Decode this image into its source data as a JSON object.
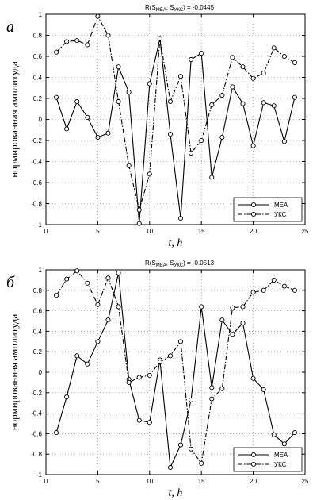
{
  "chart_data": [
    {
      "type": "line",
      "panel_label": "а",
      "title": "R(S",
      "title_sub1": "MEA",
      "title_mid": ", S",
      "title_sub2": "УКС",
      "title_tail": ") = -0.0445",
      "xlabel": "t, h",
      "ylabel": "нормированная амплитуда",
      "xlim": [
        0,
        25
      ],
      "ylim": [
        -1,
        1
      ],
      "xticks": [
        "0",
        "5",
        "10",
        "15",
        "20",
        "25"
      ],
      "yticks": [
        "-1",
        "-0.8",
        "-0.6",
        "-0.4",
        "-0.2",
        "0",
        "0.2",
        "0.4",
        "0.6",
        "0.8",
        "1"
      ],
      "grid": "dotted",
      "legend_position": "bottom-right",
      "x": [
        1,
        2,
        3,
        4,
        5,
        6,
        7,
        8,
        9,
        10,
        11,
        12,
        13,
        14,
        15,
        16,
        17,
        18,
        19,
        20,
        21,
        22,
        23,
        24
      ],
      "series": [
        {
          "name": "МЕА",
          "style": "solid",
          "values": [
            0.21,
            -0.09,
            0.17,
            0.02,
            -0.17,
            -0.13,
            0.5,
            0.26,
            -0.99,
            0.34,
            0.77,
            -0.14,
            -0.94,
            0.57,
            0.63,
            -0.55,
            -0.17,
            0.31,
            0.15,
            -0.25,
            0.16,
            0.13,
            -0.21,
            0.21
          ]
        },
        {
          "name": "УКС",
          "style": "dashdot",
          "values": [
            0.64,
            0.74,
            0.75,
            0.71,
            0.98,
            0.8,
            0.17,
            -0.44,
            -0.86,
            -0.52,
            0.77,
            0.17,
            0.41,
            -0.32,
            -0.2,
            0.14,
            0.23,
            0.59,
            0.5,
            0.39,
            0.44,
            0.68,
            0.6,
            0.54
          ]
        }
      ]
    },
    {
      "type": "line",
      "panel_label": "б",
      "title": "R(S",
      "title_sub1": "MEA",
      "title_mid": ", S",
      "title_sub2": "УКС",
      "title_tail": ") = -0.0513",
      "xlabel": "t, h",
      "ylabel": "нормированная амплитуда",
      "xlim": [
        0,
        25
      ],
      "ylim": [
        -1,
        1
      ],
      "xticks": [
        "0",
        "5",
        "10",
        "15",
        "20",
        "25"
      ],
      "yticks": [
        "-1",
        "-0.8",
        "-0.6",
        "-0.4",
        "-0.2",
        "0",
        "0.2",
        "0.4",
        "0.6",
        "0.8",
        "1"
      ],
      "grid": "dotted",
      "legend_position": "bottom-right",
      "x": [
        1,
        2,
        3,
        4,
        5,
        6,
        7,
        8,
        9,
        10,
        11,
        12,
        13,
        14,
        15,
        16,
        17,
        18,
        19,
        20,
        21,
        22,
        23,
        24
      ],
      "series": [
        {
          "name": "МЕА",
          "style": "solid",
          "values": [
            -0.59,
            -0.24,
            0.16,
            0.08,
            0.3,
            0.51,
            0.97,
            -0.07,
            -0.47,
            -0.49,
            0.12,
            -0.93,
            -0.71,
            -0.27,
            0.64,
            -0.15,
            0.51,
            0.37,
            0.48,
            -0.06,
            -0.17,
            -0.61,
            -0.7,
            -0.59
          ]
        },
        {
          "name": "УКС",
          "style": "dashdot",
          "values": [
            0.75,
            0.91,
            0.99,
            0.87,
            0.66,
            0.92,
            0.64,
            -0.1,
            -0.05,
            -0.03,
            0.1,
            0.16,
            0.3,
            -0.75,
            -0.89,
            -0.26,
            -0.16,
            0.63,
            0.64,
            0.78,
            0.8,
            0.9,
            0.84,
            0.8
          ]
        }
      ]
    }
  ]
}
